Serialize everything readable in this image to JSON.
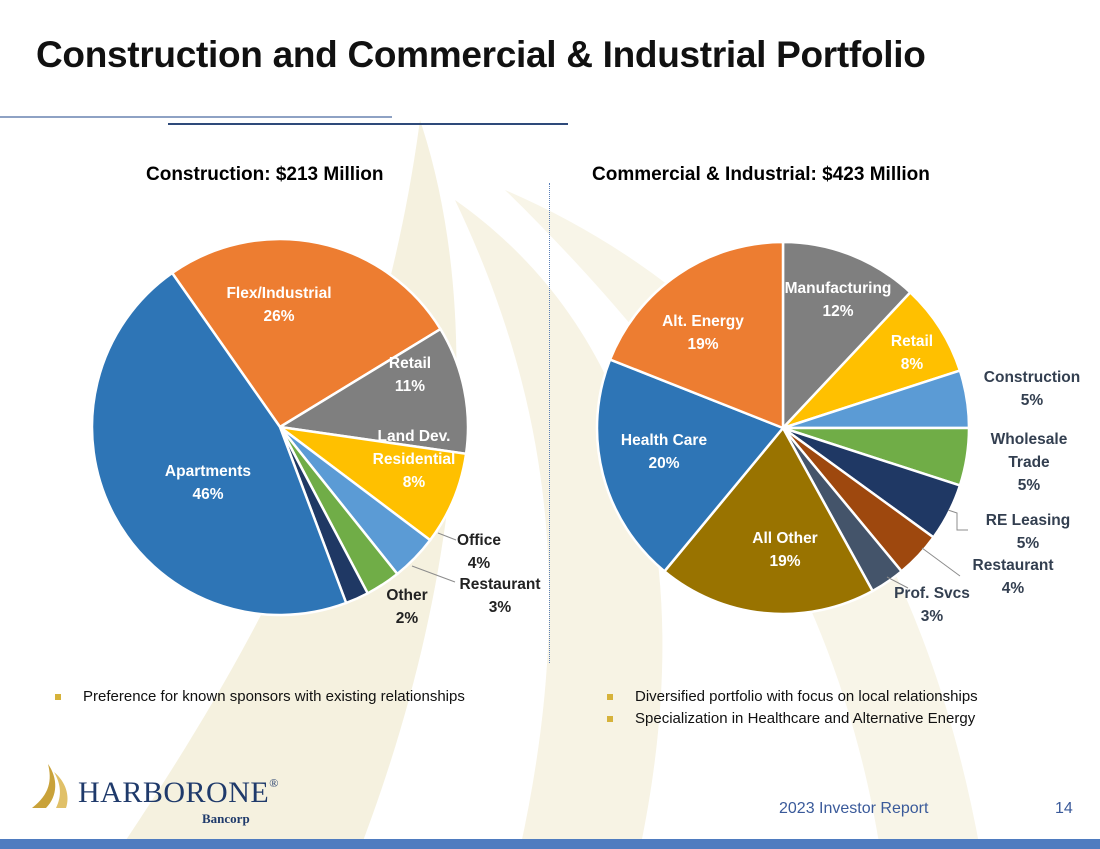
{
  "slide": {
    "title": "Construction and Commercial & Industrial Portfolio",
    "footer_text": "2023 Investor Report",
    "page_number": "14",
    "logo_name": "HARBORONE",
    "logo_sub": "Bancorp",
    "reg_mark": "®"
  },
  "bullets_left": [
    "Preference for known sponsors with existing relationships"
  ],
  "bullets_right": [
    "Diversified portfolio with focus on local relationships",
    "Specialization in Healthcare and Alternative Energy"
  ],
  "chart_data": [
    {
      "type": "pie",
      "title": "Construction:  $213 Million",
      "slices": [
        {
          "label": "Flex/Industrial",
          "value": 26,
          "display": "26%",
          "color": "#ed7d31"
        },
        {
          "label": "Retail",
          "value": 11,
          "display": "11%",
          "color": "#7f7f7f"
        },
        {
          "label": "Land Dev. Residential",
          "value": 8,
          "display": "8%",
          "color": "#ffc000"
        },
        {
          "label": "Office",
          "value": 4,
          "display": "4%",
          "color": "#5b9bd5"
        },
        {
          "label": "Restaurant",
          "value": 3,
          "display": "3%",
          "color": "#70ad47"
        },
        {
          "label": "Other",
          "value": 2,
          "display": "2%",
          "color": "#1f3864"
        },
        {
          "label": "Apartments",
          "value": 46,
          "display": "46%",
          "color": "#2e75b6"
        }
      ]
    },
    {
      "type": "pie",
      "title": "Commercial & Industrial:  $423 Million",
      "slices": [
        {
          "label": "Manufacturing",
          "value": 12,
          "display": "12%",
          "color": "#7f7f7f"
        },
        {
          "label": "Retail",
          "value": 8,
          "display": "8%",
          "color": "#ffc000"
        },
        {
          "label": "Construction",
          "value": 5,
          "display": "5%",
          "color": "#5b9bd5"
        },
        {
          "label": "Wholesale Trade",
          "value": 5,
          "display": "5%",
          "color": "#70ad47"
        },
        {
          "label": "RE Leasing",
          "value": 5,
          "display": "5%",
          "color": "#1f3864"
        },
        {
          "label": "Restaurant",
          "value": 4,
          "display": "4%",
          "color": "#9e480e"
        },
        {
          "label": "Prof. Svcs",
          "value": 3,
          "display": "3%",
          "color": "#44546a"
        },
        {
          "label": "All Other",
          "value": 19,
          "display": "19%",
          "color": "#997300"
        },
        {
          "label": "Health Care",
          "value": 20,
          "display": "20%",
          "color": "#2e75b6"
        },
        {
          "label": "Alt. Energy",
          "value": 19,
          "display": "19%",
          "color": "#ed7d31"
        }
      ]
    }
  ]
}
